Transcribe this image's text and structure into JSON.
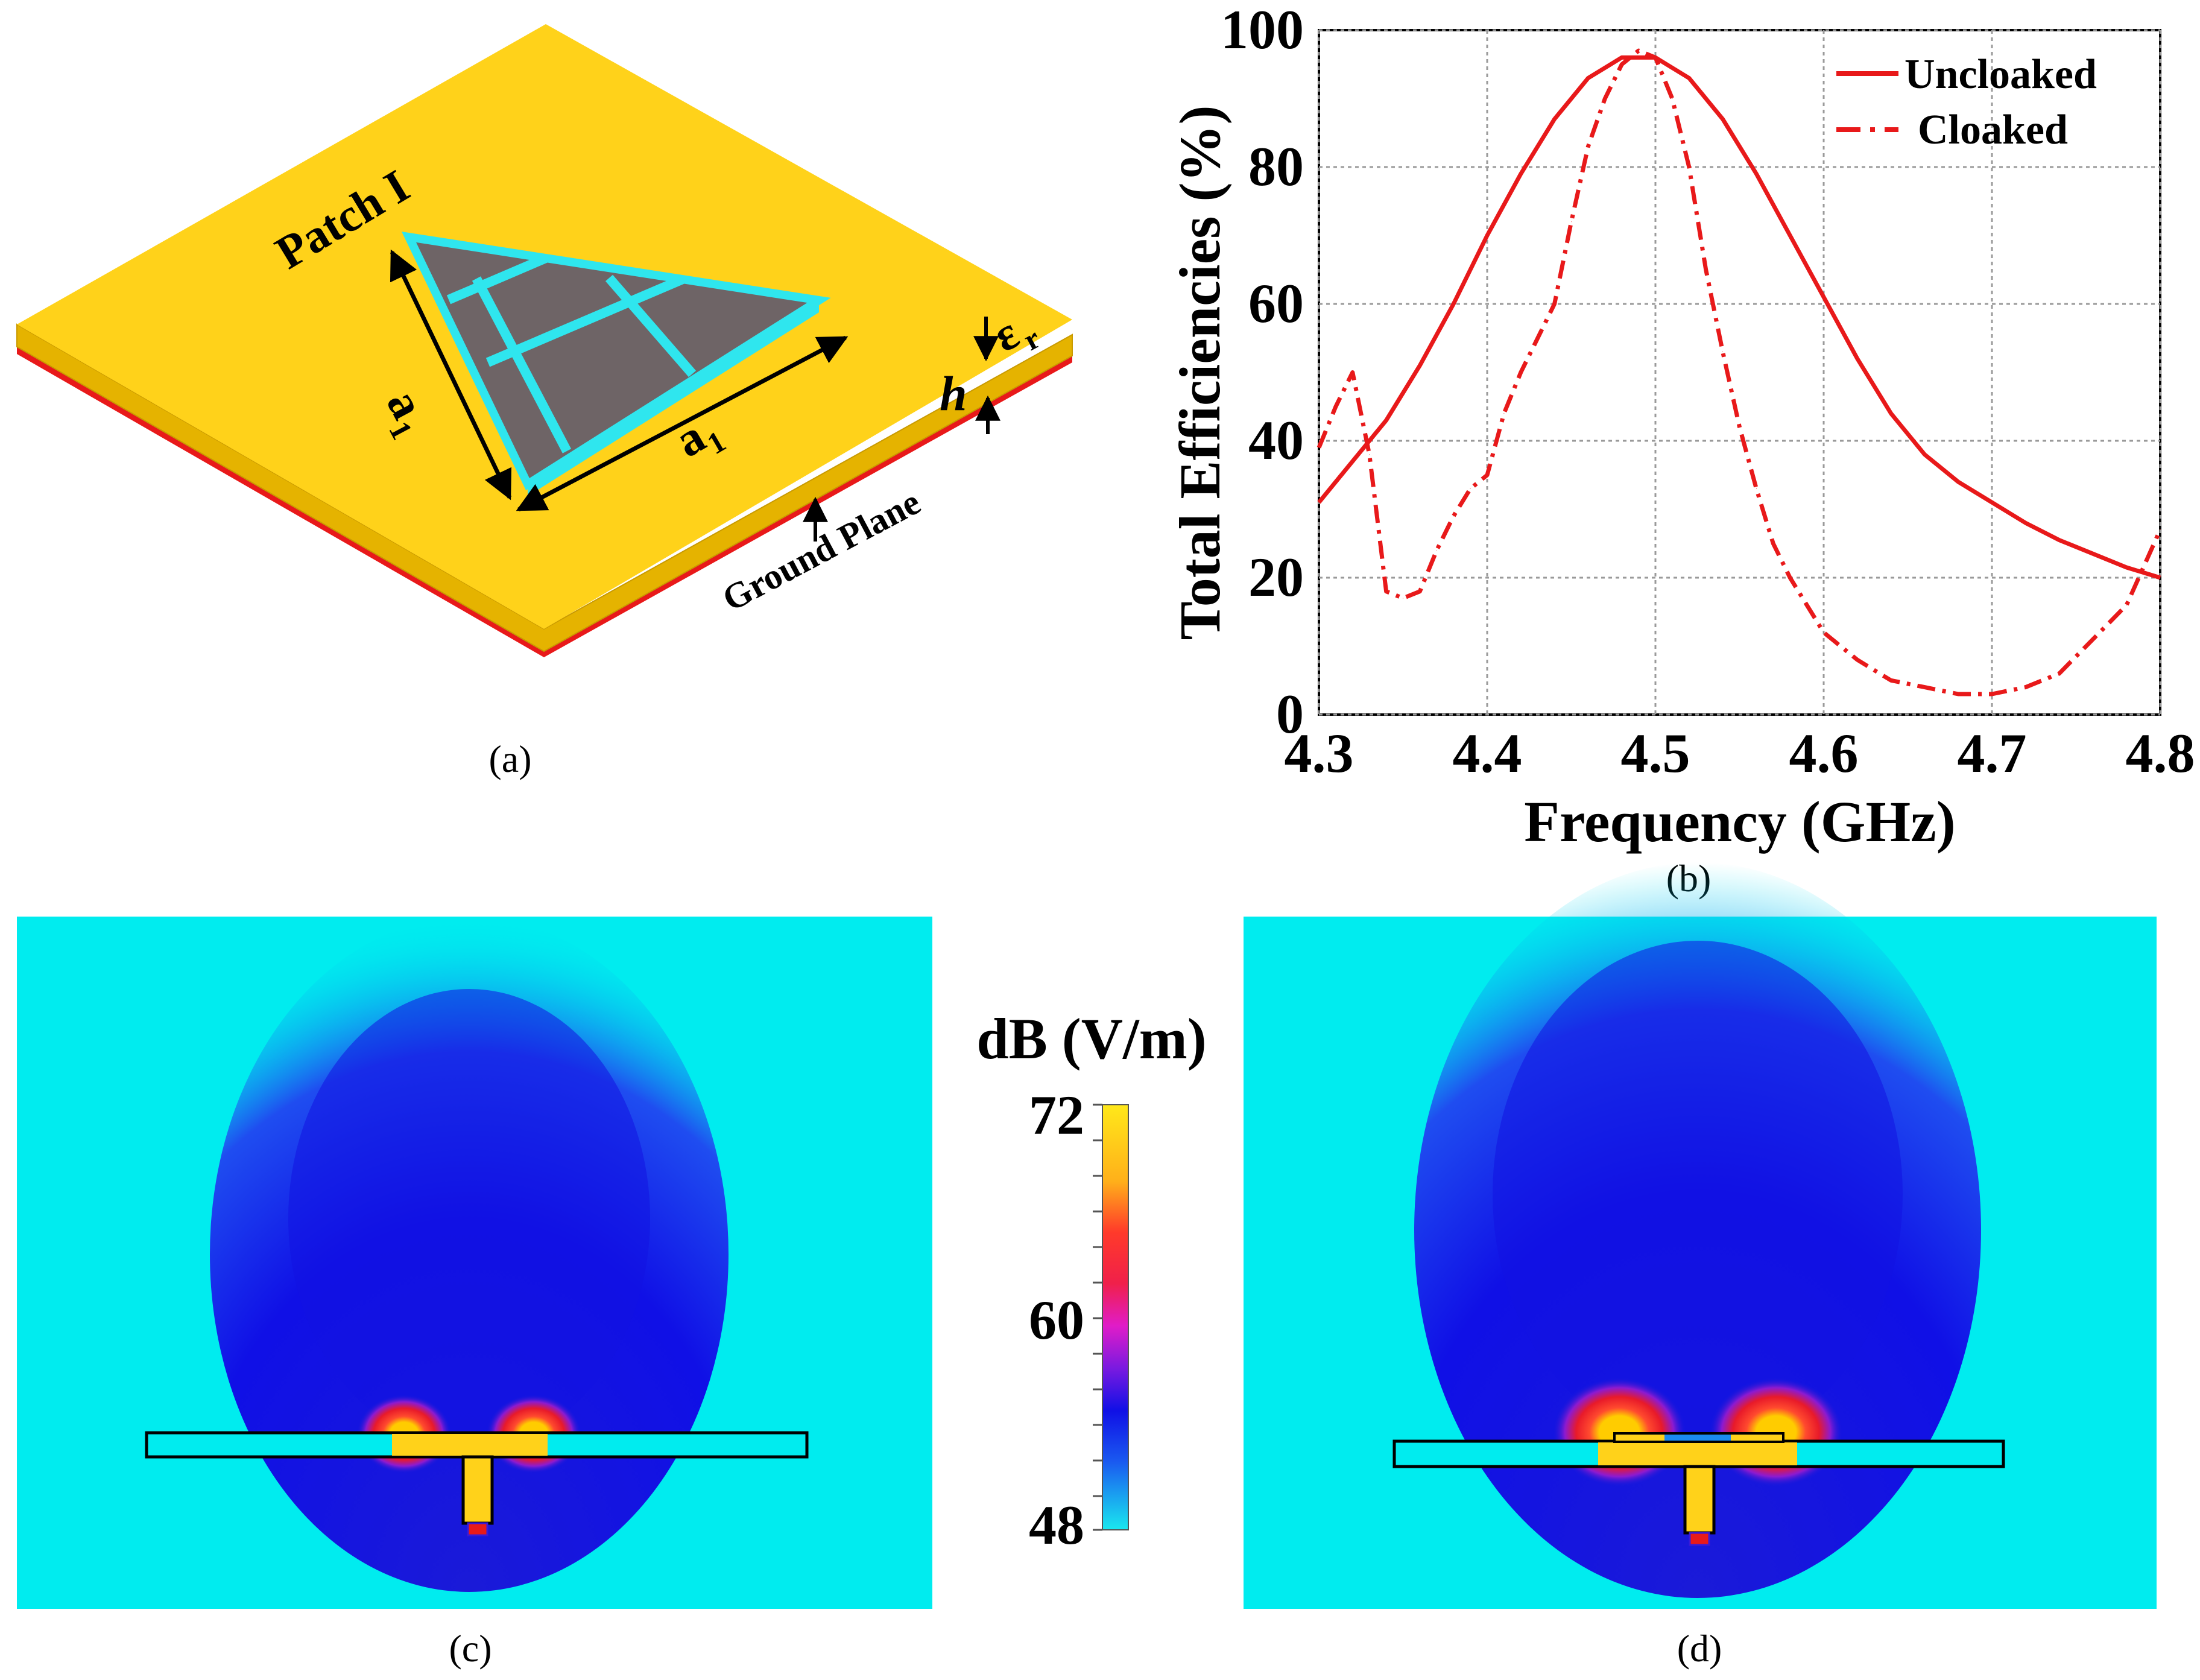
{
  "panel_a": {
    "caption": "(a)",
    "patch_label": "Patch I",
    "side_label_left": "a",
    "side_label_left_sub": "1",
    "side_label_bottom": "a",
    "side_label_bottom_sub": "1",
    "height_label": "h",
    "permittivity_label": "ε",
    "permittivity_sub": "r",
    "ground_label": "Ground Plane",
    "colors": {
      "substrate": "#ffd21a",
      "ground": "#e8191a",
      "patch": "#6e6466",
      "grid": "#2fe6ee"
    }
  },
  "panel_b": {
    "caption": "(b)",
    "chart_data": {
      "type": "line",
      "xlabel": "Frequency (GHz)",
      "ylabel": "Total Efficiencies (%)",
      "xlim": [
        4.3,
        4.8
      ],
      "ylim": [
        0,
        100
      ],
      "xticks": [
        "4.3",
        "4.4",
        "4.5",
        "4.6",
        "4.7",
        "4.8"
      ],
      "yticks": [
        "0",
        "20",
        "40",
        "60",
        "80",
        "100"
      ],
      "grid": true,
      "legend_position": "top-right",
      "series": [
        {
          "name": "Uncloaked",
          "style": "solid",
          "color": "#e8191a",
          "x": [
            4.3,
            4.32,
            4.34,
            4.36,
            4.38,
            4.4,
            4.42,
            4.44,
            4.46,
            4.48,
            4.5,
            4.52,
            4.54,
            4.56,
            4.58,
            4.6,
            4.62,
            4.64,
            4.66,
            4.68,
            4.7,
            4.72,
            4.74,
            4.76,
            4.78,
            4.8
          ],
          "y": [
            31,
            37,
            43,
            51,
            60,
            70,
            79,
            87,
            93,
            96,
            96,
            93,
            87,
            79,
            70,
            61,
            52,
            44,
            38,
            34,
            31,
            28,
            25.5,
            23.5,
            21.5,
            20
          ]
        },
        {
          "name": "Cloaked",
          "style": "dashdot",
          "color": "#e8191a",
          "x": [
            4.3,
            4.31,
            4.32,
            4.33,
            4.34,
            4.35,
            4.36,
            4.37,
            4.38,
            4.39,
            4.4,
            4.41,
            4.42,
            4.43,
            4.44,
            4.45,
            4.46,
            4.47,
            4.48,
            4.49,
            4.5,
            4.51,
            4.52,
            4.53,
            4.54,
            4.55,
            4.56,
            4.57,
            4.58,
            4.59,
            4.6,
            4.62,
            4.64,
            4.66,
            4.68,
            4.7,
            4.72,
            4.74,
            4.76,
            4.78,
            4.8
          ],
          "y": [
            39,
            45,
            50,
            38,
            18,
            17,
            18,
            24,
            29,
            33,
            35,
            44,
            50,
            55,
            60,
            72,
            83,
            90,
            95,
            97,
            96,
            90,
            80,
            65,
            53,
            42,
            33,
            25,
            20,
            16,
            12,
            8,
            5,
            4,
            3,
            3,
            4,
            6,
            11,
            16,
            27
          ]
        }
      ]
    }
  },
  "panel_c": {
    "caption": "(c)",
    "colorbar": {
      "unit": "dB (V/m)",
      "max": "72",
      "mid": "60",
      "min": "48"
    }
  },
  "panel_d": {
    "caption": "(d)"
  }
}
